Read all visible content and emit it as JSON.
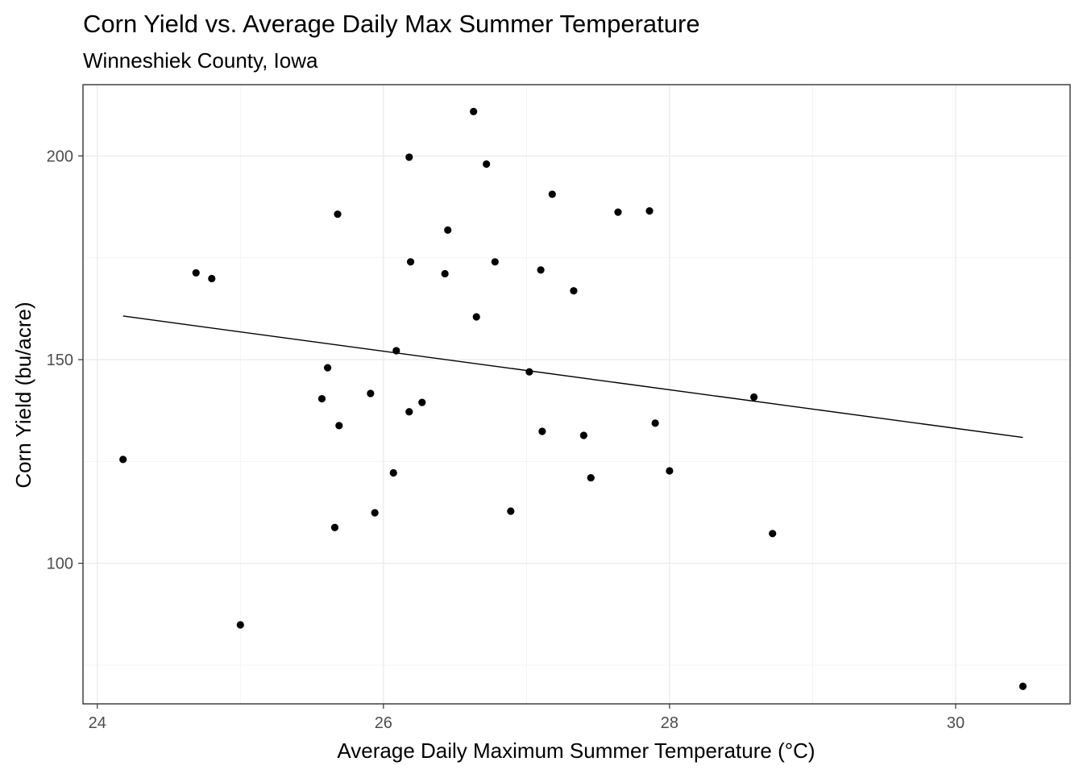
{
  "chart_data": {
    "type": "scatter",
    "title": "Corn Yield vs. Average Daily Max Summer Temperature",
    "subtitle": "Winneshiek County, Iowa",
    "xlabel": "Average Daily Maximum Summer Temperature (°C)",
    "ylabel": "Corn Yield (bu/acre)",
    "xlim": [
      23.9,
      30.8
    ],
    "ylim": [
      65.5,
      217.5
    ],
    "x_ticks": [
      24,
      26,
      28,
      30
    ],
    "y_ticks": [
      100,
      150,
      200
    ],
    "x_minor": [
      25,
      27,
      29
    ],
    "y_minor": [
      75,
      125,
      175
    ],
    "grid": true,
    "points": [
      {
        "x": 24.18,
        "y": 125.5
      },
      {
        "x": 24.69,
        "y": 171.3
      },
      {
        "x": 24.8,
        "y": 169.9
      },
      {
        "x": 25.0,
        "y": 84.9
      },
      {
        "x": 25.57,
        "y": 140.4
      },
      {
        "x": 25.61,
        "y": 148.0
      },
      {
        "x": 25.66,
        "y": 108.8
      },
      {
        "x": 25.68,
        "y": 185.7
      },
      {
        "x": 25.69,
        "y": 133.8
      },
      {
        "x": 25.91,
        "y": 141.7
      },
      {
        "x": 25.94,
        "y": 112.4
      },
      {
        "x": 26.07,
        "y": 122.2
      },
      {
        "x": 26.09,
        "y": 152.2
      },
      {
        "x": 26.18,
        "y": 199.7
      },
      {
        "x": 26.18,
        "y": 137.2
      },
      {
        "x": 26.19,
        "y": 174.0
      },
      {
        "x": 26.27,
        "y": 139.5
      },
      {
        "x": 26.43,
        "y": 171.1
      },
      {
        "x": 26.45,
        "y": 181.8
      },
      {
        "x": 26.63,
        "y": 210.9
      },
      {
        "x": 26.65,
        "y": 160.5
      },
      {
        "x": 26.72,
        "y": 198.0
      },
      {
        "x": 26.78,
        "y": 174.0
      },
      {
        "x": 26.89,
        "y": 112.8
      },
      {
        "x": 27.02,
        "y": 147.0
      },
      {
        "x": 27.1,
        "y": 172.0
      },
      {
        "x": 27.11,
        "y": 132.4
      },
      {
        "x": 27.18,
        "y": 190.6
      },
      {
        "x": 27.33,
        "y": 166.9
      },
      {
        "x": 27.4,
        "y": 131.4
      },
      {
        "x": 27.45,
        "y": 121.0
      },
      {
        "x": 27.64,
        "y": 186.2
      },
      {
        "x": 27.86,
        "y": 186.5
      },
      {
        "x": 27.9,
        "y": 134.4
      },
      {
        "x": 28.0,
        "y": 122.7
      },
      {
        "x": 28.59,
        "y": 140.8
      },
      {
        "x": 28.72,
        "y": 107.3
      },
      {
        "x": 30.47,
        "y": 69.8
      }
    ],
    "trend_line": {
      "x": [
        24.18,
        30.47
      ],
      "y": [
        160.7,
        130.9
      ]
    }
  }
}
